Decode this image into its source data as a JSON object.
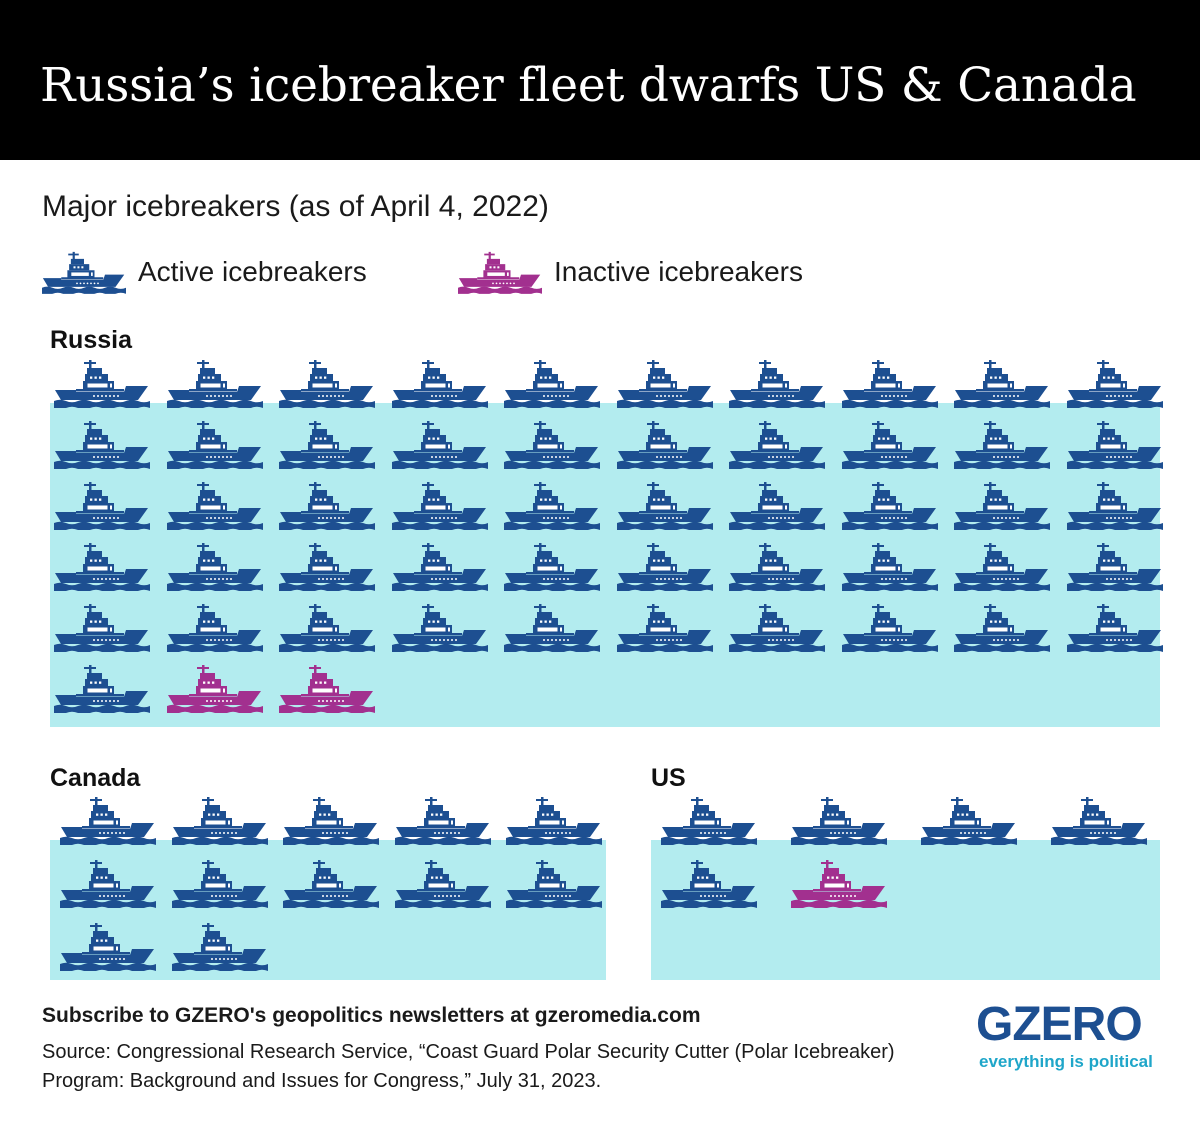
{
  "header": {
    "title": "Russia’s icebreaker fleet dwarfs US & Canada"
  },
  "subtitle": "Major icebreakers (as of April 4, 2022)",
  "legend": {
    "active_label": "Active icebreakers",
    "inactive_label": "Inactive icebreakers"
  },
  "colors": {
    "active": "#1d4f91",
    "inactive": "#a2308f",
    "ice": "#b3ecef",
    "header_bg": "#000000"
  },
  "chart_data": {
    "type": "pictogram",
    "title": "Russia’s icebreaker fleet dwarfs US & Canada",
    "subtitle": "Major icebreakers (as of April 4, 2022)",
    "categories": [
      "Russia",
      "Canada",
      "US"
    ],
    "series": [
      {
        "name": "Active icebreakers",
        "values": [
          51,
          12,
          5
        ]
      },
      {
        "name": "Inactive icebreakers",
        "values": [
          2,
          0,
          1
        ]
      }
    ],
    "legend": "top-left"
  },
  "footer": {
    "subscribe": "Subscribe to GZERO's geopolitics newsletters at gzeromedia.com",
    "source": "Source: Congressional Research Service, “Coast Guard Polar Security Cutter (Polar Icebreaker) Program: Background and Issues for Congress,” July 31, 2023."
  },
  "brand": {
    "logo": "GZERO",
    "tagline": "everything is political"
  }
}
